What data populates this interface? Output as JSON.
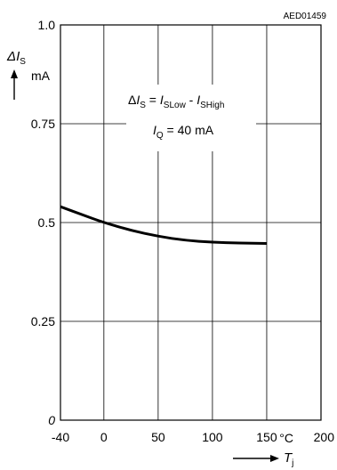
{
  "chart_data": {
    "type": "line",
    "reference_code": "AED01459",
    "ylabel": {
      "symbol": "ΔI",
      "subscript": "S",
      "unit": "mA"
    },
    "xlabel": {
      "symbol": "T",
      "subscript": "j",
      "unit": "°C"
    },
    "xlim": [
      -40,
      200
    ],
    "ylim": [
      0,
      1.0
    ],
    "x_ticks": [
      -40,
      0,
      50,
      100,
      150,
      200
    ],
    "x_tick_labels": [
      "-40",
      "0",
      "50",
      "100",
      "150",
      "200"
    ],
    "y_ticks": [
      0,
      0.25,
      0.5,
      0.75,
      1.0
    ],
    "y_tick_labels": [
      "0",
      "0.25",
      "0.5",
      "0.75",
      "1.0"
    ],
    "grid": true,
    "annotations": [
      {
        "prefix": "Δ",
        "symbol": "I",
        "subscript": "S",
        "rest": " = ",
        "symbol2": "I",
        "subscript2": "SLow",
        "rest2": " - ",
        "symbol3": "I",
        "subscript3": "SHigh"
      },
      {
        "symbol": "I",
        "subscript": "Q",
        "rest": " = 40 mA"
      }
    ],
    "series": [
      {
        "x": [
          -40,
          -20,
          0,
          25,
          50,
          75,
          100,
          125,
          150
        ],
        "y": [
          0.54,
          0.52,
          0.5,
          0.48,
          0.465,
          0.455,
          0.45,
          0.448,
          0.447
        ]
      }
    ]
  }
}
